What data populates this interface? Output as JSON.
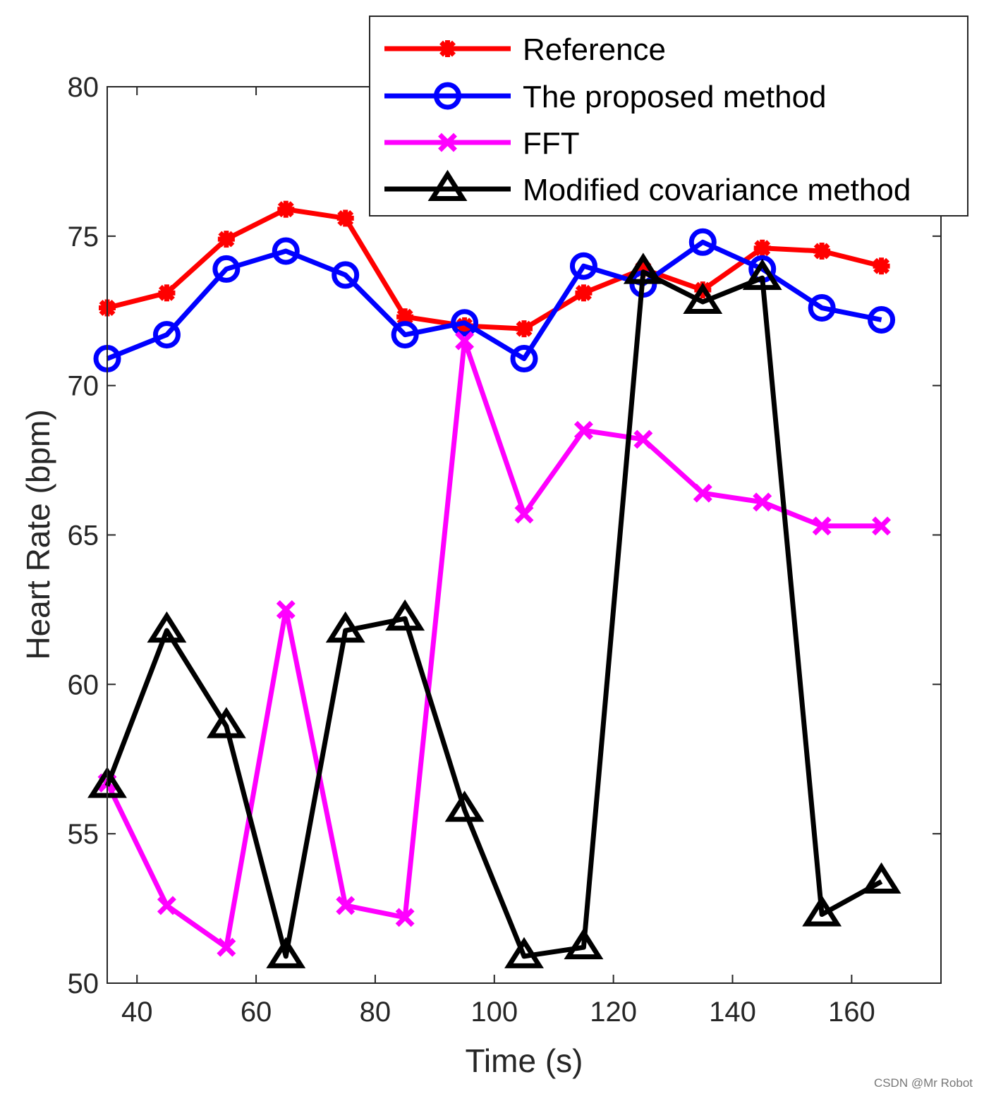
{
  "chart_data": {
    "type": "line",
    "title": "",
    "xlabel": "Time (s)",
    "ylabel": "Heart Rate (bpm)",
    "xlim": [
      35,
      175
    ],
    "ylim": [
      50,
      80
    ],
    "xticks": [
      40,
      60,
      80,
      100,
      120,
      140,
      160
    ],
    "yticks": [
      50,
      55,
      60,
      65,
      70,
      75,
      80
    ],
    "x": [
      35,
      45,
      55,
      65,
      75,
      85,
      95,
      105,
      115,
      125,
      135,
      145,
      155,
      165
    ],
    "legend_position": "top-right",
    "series": [
      {
        "name": "Reference",
        "color": "#ff0000",
        "marker": "asterisk",
        "values": [
          72.6,
          73.1,
          74.9,
          75.9,
          75.6,
          72.3,
          72.0,
          71.9,
          73.1,
          73.9,
          73.2,
          74.6,
          74.5,
          74.0
        ]
      },
      {
        "name": "The proposed method",
        "color": "#0000ff",
        "marker": "circle",
        "values": [
          70.9,
          71.7,
          73.9,
          74.5,
          73.7,
          71.7,
          72.1,
          70.9,
          74.0,
          73.4,
          74.8,
          73.9,
          72.6,
          72.2
        ]
      },
      {
        "name": "FFT",
        "color": "#ff00ff",
        "marker": "x",
        "values": [
          56.7,
          52.6,
          51.2,
          62.5,
          52.6,
          52.2,
          71.5,
          65.7,
          68.5,
          68.2,
          66.4,
          66.1,
          65.3,
          65.3
        ]
      },
      {
        "name": "Modified covariance method",
        "color": "#000000",
        "marker": "triangle",
        "values": [
          56.6,
          61.8,
          58.6,
          50.9,
          61.8,
          62.2,
          55.8,
          50.9,
          51.2,
          73.8,
          72.8,
          73.6,
          52.3,
          53.4
        ]
      }
    ]
  },
  "watermark": "CSDN @Mr  Robot"
}
